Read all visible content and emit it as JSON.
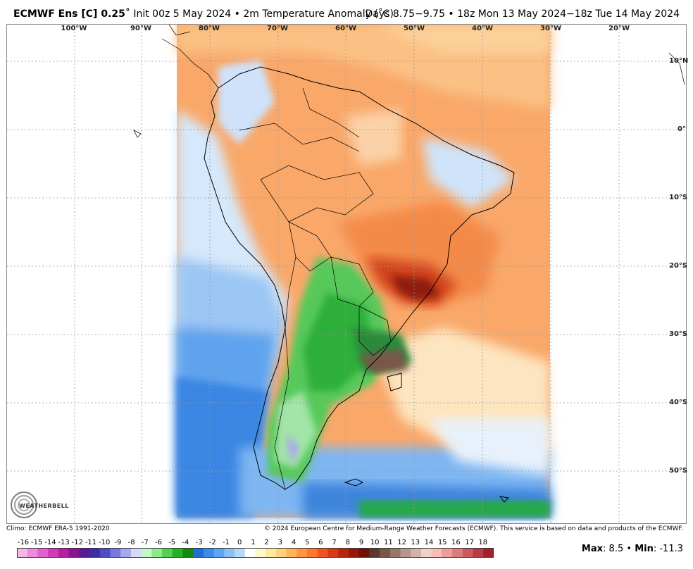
{
  "header": {
    "model": "ECMWF Ens [C] 0.25",
    "init": "Init 00z 5 May 2024",
    "field": "2m Temperature Anomaly (˚C)",
    "valid": "Days 8.75−9.75 • 18z Mon 13 May 2024−18z Tue 14 May 2024"
  },
  "lon_labels": [
    "100°W",
    "90°W",
    "80°W",
    "70°W",
    "60°W",
    "50°W",
    "40°W",
    "30°W",
    "20°W"
  ],
  "lat_labels": [
    "10°N",
    "0°",
    "10°S",
    "20°S",
    "30°S",
    "40°S",
    "50°S"
  ],
  "logo": {
    "text": "WEATHERBELL"
  },
  "footer": {
    "climo": "Climo: ECMWF ERA-5 1991-2020",
    "copyright": "© 2024 European Centre for Medium-Range Weather Forecasts (ECMWF). This service is based on data and products of the ECMWF."
  },
  "colorbar": {
    "labels": [
      "-16",
      "-15",
      "-14",
      "-13",
      "-12",
      "-11",
      "-10",
      "-9",
      "-8",
      "-7",
      "-6",
      "-5",
      "-4",
      "-3",
      "-2",
      "-1",
      "0",
      "1",
      "2",
      "3",
      "4",
      "5",
      "6",
      "7",
      "8",
      "9",
      "10",
      "11",
      "12",
      "13",
      "14",
      "15",
      "16",
      "17",
      "18"
    ],
    "colors": [
      "#f7b6e8",
      "#f08bdc",
      "#e45fce",
      "#d13ab9",
      "#b51f9f",
      "#8a1590",
      "#5a1a94",
      "#3c2ca6",
      "#4f4cc4",
      "#7a78dc",
      "#a8a6ee",
      "#d8d8f8",
      "#c6f5c6",
      "#8ee88e",
      "#52d152",
      "#22b322",
      "#128a12",
      "#1f6fd6",
      "#3a8ceb",
      "#5fa6f2",
      "#8cc0f6",
      "#b8d8fa",
      "#ffffff",
      "#fff8c8",
      "#ffe9a0",
      "#ffd37a",
      "#ffb45a",
      "#ff9542",
      "#ff7632",
      "#ee5522",
      "#d83a14",
      "#bb230d",
      "#961809",
      "#701006",
      "#5a3a30",
      "#7a5648",
      "#98766a",
      "#b8968c",
      "#d4b2a8",
      "#f0d0c8",
      "#f6bcb8",
      "#ec9c9a",
      "#df7a7a",
      "#cc5a5c",
      "#b83c42",
      "#a0232c"
    ]
  },
  "stats": {
    "max_label": "Max",
    "max": "8.5",
    "sep": "•",
    "min_label": "Min",
    "min": "-11.3"
  }
}
